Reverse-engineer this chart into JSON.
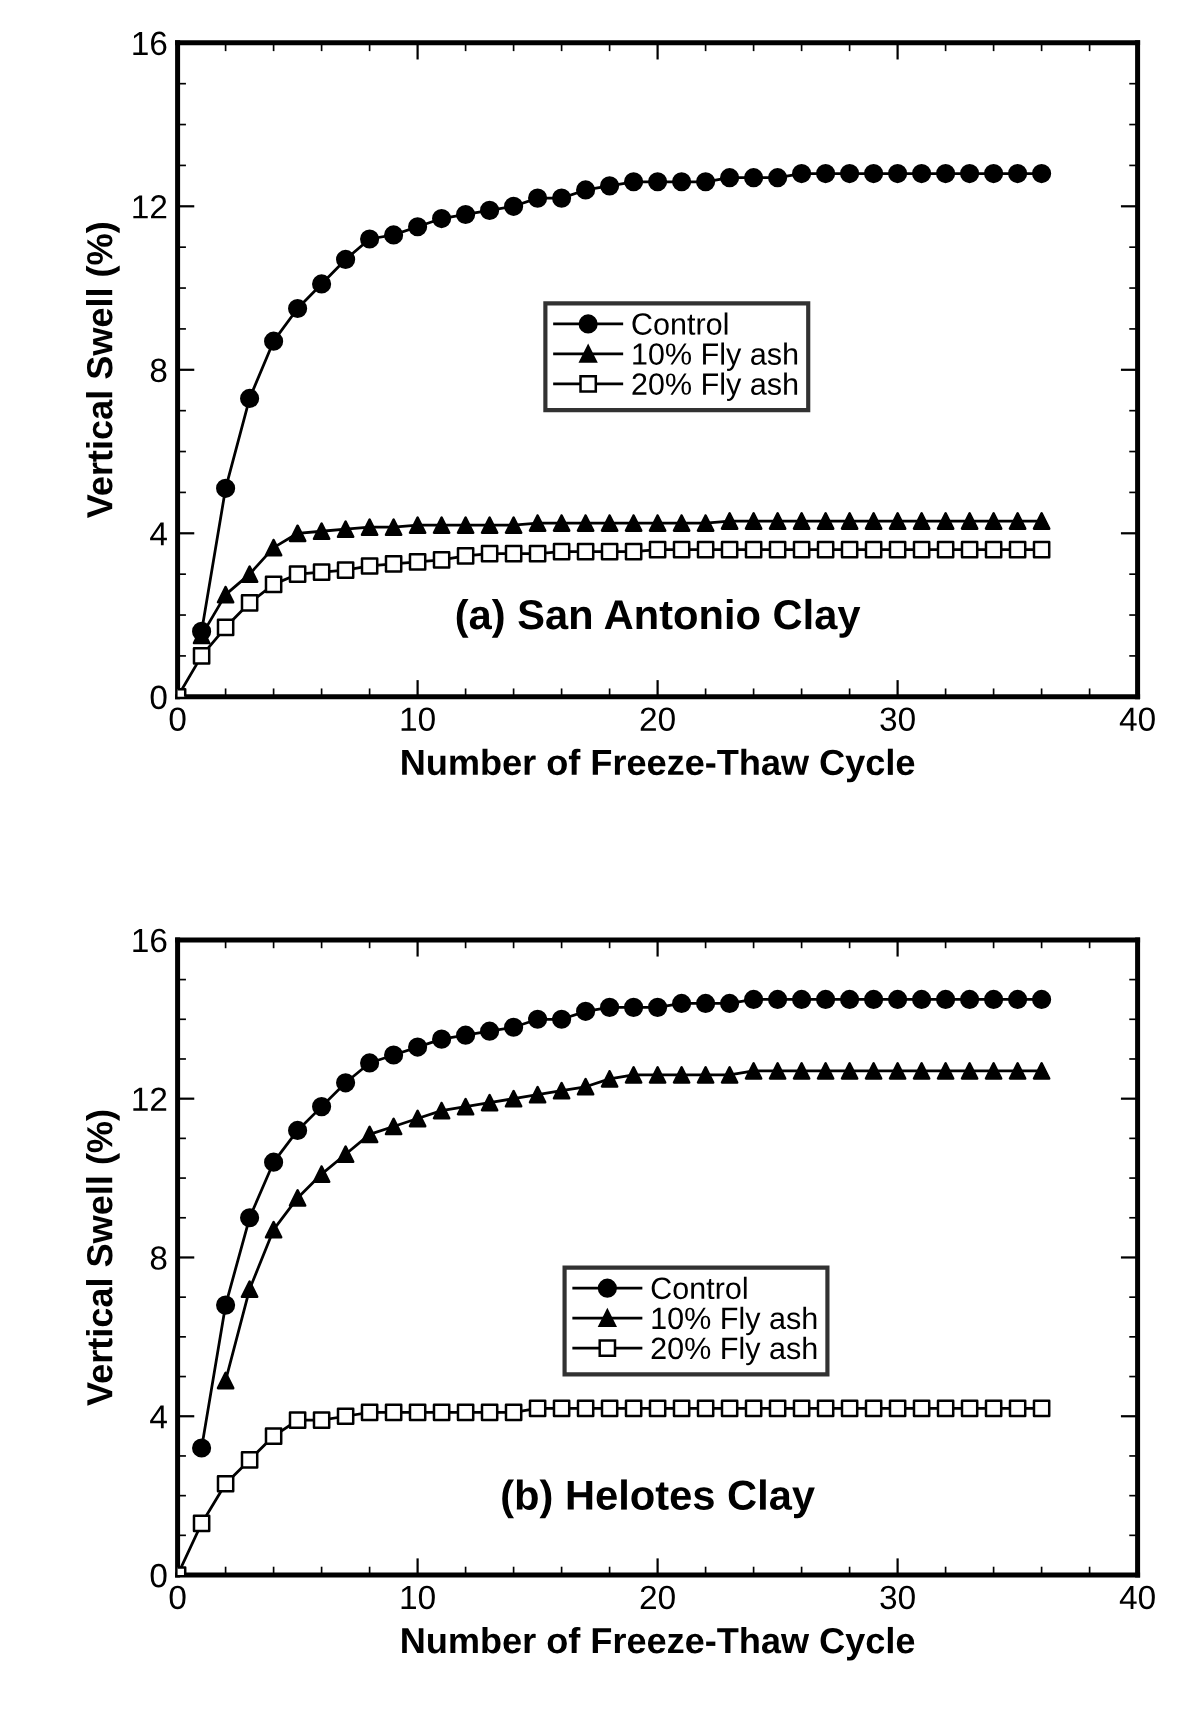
{
  "chart_data": [
    {
      "type": "line",
      "title": null,
      "xlabel": "Number of Freeze-Thaw Cycle",
      "ylabel": "Vertical Swell (%)",
      "annotations": [
        "(a) San Antonio Clay"
      ],
      "x": [
        0,
        1,
        2,
        3,
        4,
        5,
        6,
        7,
        8,
        9,
        10,
        11,
        12,
        13,
        14,
        15,
        16,
        17,
        18,
        19,
        20,
        21,
        22,
        23,
        24,
        25,
        26,
        27,
        28,
        29,
        30,
        31,
        32,
        33,
        34,
        35,
        36
      ],
      "series": [
        {
          "name": "Control",
          "color": "#000000",
          "marker": "circle",
          "values": [
            null,
            1.6,
            5.1,
            7.3,
            8.7,
            9.5,
            10.1,
            10.7,
            11.2,
            11.3,
            11.5,
            11.7,
            11.8,
            11.9,
            12.0,
            12.2,
            12.2,
            12.4,
            12.5,
            12.6,
            12.6,
            12.6,
            12.6,
            12.7,
            12.7,
            12.7,
            12.8,
            12.8,
            12.8,
            12.8,
            12.8,
            12.8,
            12.8,
            12.8,
            12.8,
            12.8,
            12.8
          ]
        },
        {
          "name": "10% Fly ash",
          "color": "#000000",
          "marker": "triangle",
          "values": [
            null,
            1.5,
            2.5,
            3.0,
            3.65,
            4.0,
            4.05,
            4.1,
            4.15,
            4.15,
            4.2,
            4.2,
            4.2,
            4.2,
            4.2,
            4.25,
            4.25,
            4.25,
            4.25,
            4.25,
            4.25,
            4.25,
            4.25,
            4.3,
            4.3,
            4.3,
            4.3,
            4.3,
            4.3,
            4.3,
            4.3,
            4.3,
            4.3,
            4.3,
            4.3,
            4.3,
            4.3
          ]
        },
        {
          "name": "20% Fly ash",
          "color": "#000000",
          "marker": "square",
          "values": [
            0,
            1.0,
            1.7,
            2.3,
            2.75,
            3.0,
            3.05,
            3.1,
            3.2,
            3.25,
            3.3,
            3.35,
            3.45,
            3.5,
            3.5,
            3.5,
            3.55,
            3.55,
            3.55,
            3.55,
            3.6,
            3.6,
            3.6,
            3.6,
            3.6,
            3.6,
            3.6,
            3.6,
            3.6,
            3.6,
            3.6,
            3.6,
            3.6,
            3.6,
            3.6,
            3.6,
            3.6
          ]
        }
      ],
      "xlim": [
        0,
        40
      ],
      "xticks": [
        0,
        10,
        20,
        30,
        40
      ],
      "ylim": [
        0,
        16
      ],
      "yticks": [
        0,
        4,
        8,
        12,
        16
      ],
      "legend": "center",
      "grid": false,
      "line_style": "solid"
    },
    {
      "type": "line",
      "title": null,
      "xlabel": "Number of Freeze-Thaw Cycle",
      "ylabel": "Vertical Swell (%)",
      "annotations": [
        "(b) Helotes Clay"
      ],
      "x": [
        0,
        1,
        2,
        3,
        4,
        5,
        6,
        7,
        8,
        9,
        10,
        11,
        12,
        13,
        14,
        15,
        16,
        17,
        18,
        19,
        20,
        21,
        22,
        23,
        24,
        25,
        26,
        27,
        28,
        29,
        30,
        31,
        32,
        33,
        34,
        35,
        36
      ],
      "series": [
        {
          "name": "Control",
          "color": "#000000",
          "marker": "circle",
          "values": [
            null,
            3.2,
            6.8,
            9.0,
            10.4,
            11.2,
            11.8,
            12.4,
            12.9,
            13.1,
            13.3,
            13.5,
            13.6,
            13.7,
            13.8,
            14.0,
            14.0,
            14.2,
            14.3,
            14.3,
            14.3,
            14.4,
            14.4,
            14.4,
            14.5,
            14.5,
            14.5,
            14.5,
            14.5,
            14.5,
            14.5,
            14.5,
            14.5,
            14.5,
            14.5,
            14.5,
            14.5
          ]
        },
        {
          "name": "10% Fly ash",
          "color": "#000000",
          "marker": "triangle",
          "values": [
            null,
            null,
            4.9,
            7.2,
            8.7,
            9.5,
            10.1,
            10.6,
            11.1,
            11.3,
            11.5,
            11.7,
            11.8,
            11.9,
            12.0,
            12.1,
            12.2,
            12.3,
            12.5,
            12.6,
            12.6,
            12.6,
            12.6,
            12.6,
            12.7,
            12.7,
            12.7,
            12.7,
            12.7,
            12.7,
            12.7,
            12.7,
            12.7,
            12.7,
            12.7,
            12.7,
            12.7
          ]
        },
        {
          "name": "20% Fly ash",
          "color": "#000000",
          "marker": "square",
          "values": [
            0,
            1.3,
            2.3,
            2.9,
            3.5,
            3.9,
            3.9,
            4.0,
            4.1,
            4.1,
            4.1,
            4.1,
            4.1,
            4.1,
            4.1,
            4.2,
            4.2,
            4.2,
            4.2,
            4.2,
            4.2,
            4.2,
            4.2,
            4.2,
            4.2,
            4.2,
            4.2,
            4.2,
            4.2,
            4.2,
            4.2,
            4.2,
            4.2,
            4.2,
            4.2,
            4.2,
            4.2
          ]
        }
      ],
      "xlim": [
        0,
        40
      ],
      "xticks": [
        0,
        10,
        20,
        30,
        40
      ],
      "ylim": [
        0,
        16
      ],
      "yticks": [
        0,
        4,
        8,
        12,
        16
      ],
      "legend": "center",
      "grid": false,
      "line_style": "solid"
    }
  ]
}
